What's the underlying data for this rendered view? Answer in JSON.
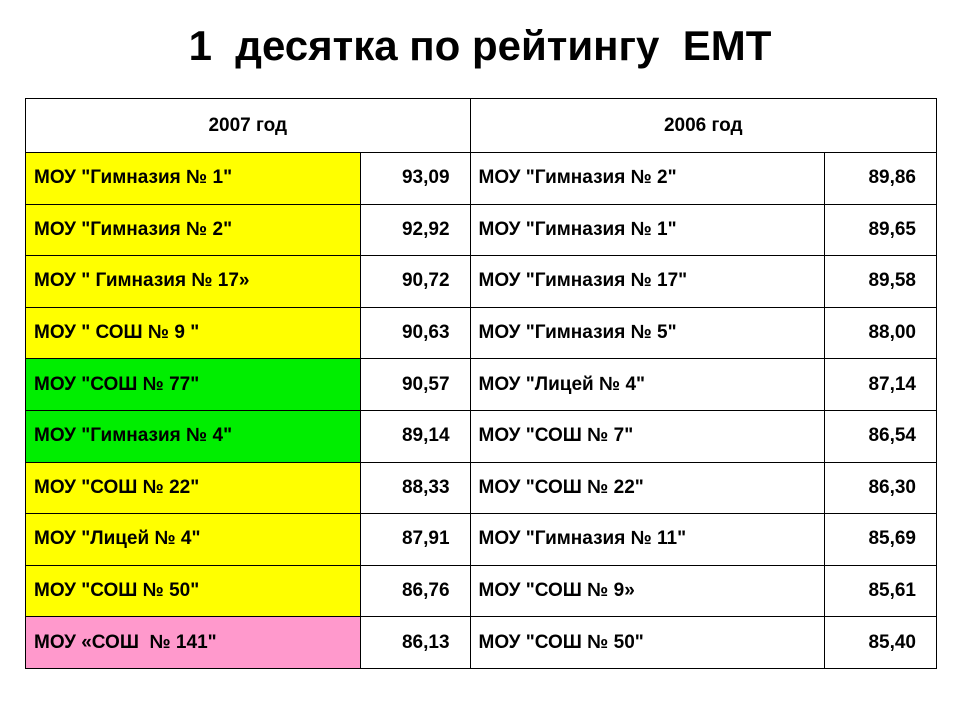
{
  "header": {
    "title": "1  десятка по рейтингу  ЕМТ"
  },
  "table": {
    "columns": [
      "2007 год",
      "2006 год"
    ],
    "rows": [
      {
        "school_2007": "МОУ \"Гимназия № 1\"",
        "score_2007": "93,09",
        "school_2006": "МОУ \"Гимназия № 2\"",
        "score_2006": "89,86",
        "color": "#ffff00"
      },
      {
        "school_2007": "МОУ \"Гимназия № 2\"",
        "score_2007": "92,92",
        "school_2006": "МОУ \"Гимназия № 1\"",
        "score_2006": "89,65",
        "color": "#ffff00"
      },
      {
        "school_2007": "МОУ \" Гимназия № 17»",
        "score_2007": "90,72",
        "school_2006": "МОУ \"Гимназия № 17\"",
        "score_2006": "89,58",
        "color": "#ffff00"
      },
      {
        "school_2007": "МОУ \" СОШ № 9 \"",
        "score_2007": "90,63",
        "school_2006": "МОУ \"Гимназия № 5\"",
        "score_2006": "88,00",
        "color": "#ffff00"
      },
      {
        "school_2007": "МОУ \"СОШ № 77\"",
        "score_2007": "90,57",
        "school_2006": "МОУ \"Лицей № 4\"",
        "score_2006": "87,14",
        "color": "#00ee00"
      },
      {
        "school_2007": "МОУ \"Гимназия № 4\"",
        "score_2007": "89,14",
        "school_2006": "МОУ \"СОШ № 7\"",
        "score_2006": "86,54",
        "color": "#00ee00"
      },
      {
        "school_2007": "МОУ \"СОШ № 22\"",
        "score_2007": "88,33",
        "school_2006": "МОУ \"СОШ № 22\"",
        "score_2006": "86,30",
        "color": "#ffff00"
      },
      {
        "school_2007": "МОУ \"Лицей № 4\"",
        "score_2007": "87,91",
        "school_2006": "МОУ \"Гимназия № 11\"",
        "score_2006": "85,69",
        "color": "#ffff00"
      },
      {
        "school_2007": "МОУ \"СОШ № 50\"",
        "score_2007": "86,76",
        "school_2006": "МОУ \"СОШ № 9»",
        "score_2006": "85,61",
        "color": "#ffff00"
      },
      {
        "school_2007": "МОУ «СОШ  № 141\"",
        "score_2007": "86,13",
        "school_2006": "МОУ \"СОШ № 50\"",
        "score_2006": "85,40",
        "color": "#ff99cc"
      }
    ]
  }
}
